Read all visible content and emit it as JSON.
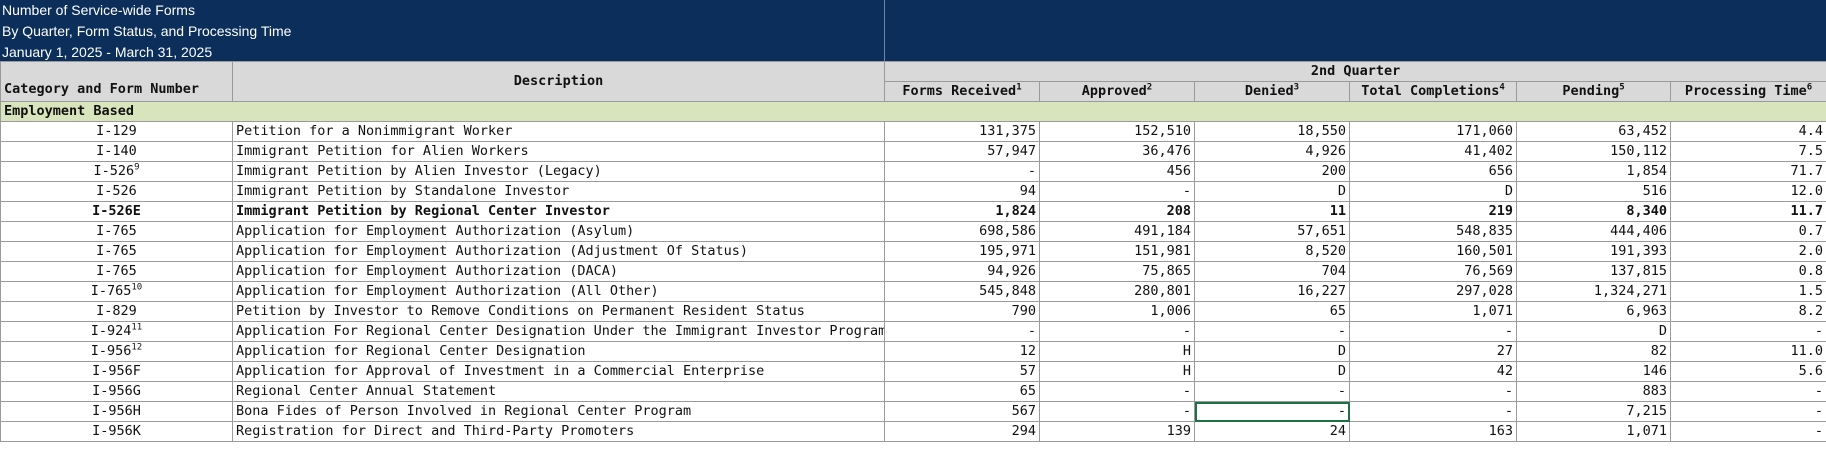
{
  "title": {
    "line1": "Number of Service-wide Forms",
    "line2": "By Quarter, Form Status, and Processing Time",
    "line3": "January 1, 2025 - March 31, 2025"
  },
  "header": {
    "category": "Category and Form Number",
    "description": "Description",
    "quarter": "2nd Quarter",
    "columns": [
      {
        "label": "Forms Received",
        "sup": "1"
      },
      {
        "label": "Approved",
        "sup": "2"
      },
      {
        "label": "Denied",
        "sup": "3"
      },
      {
        "label": "Total Completions",
        "sup": "4"
      },
      {
        "label": "Pending",
        "sup": "5"
      },
      {
        "label": "Processing Time",
        "sup": "6"
      }
    ]
  },
  "section": "Employment Based",
  "rows": [
    {
      "form": "I-129",
      "sup": "",
      "desc": "Petition for a Nonimmigrant Worker",
      "v": [
        "131,375",
        "152,510",
        "18,550",
        "171,060",
        "63,452",
        "4.4"
      ]
    },
    {
      "form": "I-140",
      "sup": "",
      "desc": "Immigrant Petition for Alien Workers",
      "v": [
        "57,947",
        "36,476",
        "4,926",
        "41,402",
        "150,112",
        "7.5"
      ]
    },
    {
      "form": "I-526",
      "sup": "9",
      "desc": "Immigrant Petition by Alien Investor (Legacy)",
      "v": [
        "-",
        "456",
        "200",
        "656",
        "1,854",
        "71.7"
      ]
    },
    {
      "form": "I-526",
      "sup": "",
      "desc": "Immigrant Petition by Standalone Investor",
      "v": [
        "94",
        "-",
        "D",
        "D",
        "516",
        "12.0"
      ]
    },
    {
      "form": "I-526E",
      "sup": "",
      "desc": "Immigrant Petition by Regional Center Investor",
      "v": [
        "1,824",
        "208",
        "11",
        "219",
        "8,340",
        "11.7"
      ]
    },
    {
      "form": "I-765",
      "sup": "",
      "desc": "Application for Employment Authorization (Asylum)",
      "v": [
        "698,586",
        "491,184",
        "57,651",
        "548,835",
        "444,406",
        "0.7"
      ]
    },
    {
      "form": "I-765",
      "sup": "",
      "desc": "Application for Employment Authorization (Adjustment Of Status)",
      "v": [
        "195,971",
        "151,981",
        "8,520",
        "160,501",
        "191,393",
        "2.0"
      ]
    },
    {
      "form": "I-765",
      "sup": "",
      "desc": "Application for Employment Authorization (DACA)",
      "v": [
        "94,926",
        "75,865",
        "704",
        "76,569",
        "137,815",
        "0.8"
      ]
    },
    {
      "form": "I-765",
      "sup": "10",
      "desc": "Application for Employment Authorization (All Other)",
      "v": [
        "545,848",
        "280,801",
        "16,227",
        "297,028",
        "1,324,271",
        "1.5"
      ]
    },
    {
      "form": "I-829",
      "sup": "",
      "desc": "Petition by Investor to Remove Conditions on Permanent Resident Status",
      "v": [
        "790",
        "1,006",
        "65",
        "1,071",
        "6,963",
        "8.2"
      ]
    },
    {
      "form": "I-924",
      "sup": "11",
      "desc": "Application For Regional Center Designation Under the Immigrant Investor Program",
      "v": [
        "-",
        "-",
        "-",
        "-",
        "D",
        "-"
      ]
    },
    {
      "form": "I-956",
      "sup": "12",
      "desc": "Application for Regional Center Designation",
      "v": [
        "12",
        "H",
        "D",
        "27",
        "82",
        "11.0"
      ]
    },
    {
      "form": "I-956F",
      "sup": "",
      "desc": "Application for Approval of Investment in a Commercial Enterprise",
      "v": [
        "57",
        "H",
        "D",
        "42",
        "146",
        "5.6"
      ]
    },
    {
      "form": "I-956G",
      "sup": "",
      "desc": "Regional Center Annual Statement",
      "v": [
        "65",
        "-",
        "-",
        "-",
        "883",
        "-"
      ]
    },
    {
      "form": "I-956H",
      "sup": "",
      "desc": "Bona Fides of Person Involved in Regional Center Program",
      "v": [
        "567",
        "-",
        "-",
        "-",
        "7,215",
        "-"
      ]
    },
    {
      "form": "I-956K",
      "sup": "",
      "desc": "Registration for Direct and Third-Party Promoters",
      "v": [
        "294",
        "139",
        "24",
        "163",
        "1,071",
        "-"
      ]
    }
  ],
  "colors": {
    "title_bg": "#0b2e5a",
    "header_bg": "#d9d9d9",
    "section_bg": "#d8e4bc",
    "highlight_text": "#ff0000"
  }
}
